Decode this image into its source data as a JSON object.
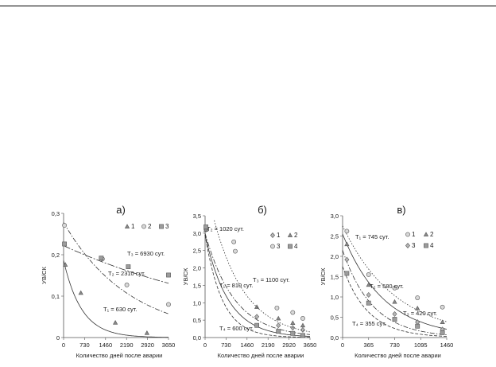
{
  "chart_data": [
    {
      "type": "scatter",
      "title": "а)",
      "xlabel": "Количество дней после аварии",
      "ylabel": "УВ/СК",
      "xlim": [
        0,
        3650
      ],
      "ylim": [
        0,
        0.3
      ],
      "xticks": [
        0,
        730,
        1460,
        2190,
        2920,
        3650
      ],
      "xtick_labels": [
        "0",
        "730",
        "1460",
        "2190",
        "2920",
        "3650"
      ],
      "yticks": [
        0,
        0.1,
        0.2,
        0.3
      ],
      "ytick_labels": [
        "0",
        "0,1",
        "0,2",
        "0,3"
      ],
      "grid": false,
      "legend": {
        "position": "top-right",
        "entries": [
          {
            "label": "1",
            "marker": "triangle"
          },
          {
            "label": "2",
            "marker": "circle"
          },
          {
            "label": "3",
            "marker": "square"
          }
        ]
      },
      "series": [
        {
          "name": "1",
          "marker": "triangle",
          "points": [
            [
              60,
              0.176
            ],
            [
              600,
              0.108
            ],
            [
              1800,
              0.036
            ],
            [
              2900,
              0.011
            ]
          ],
          "curve": {
            "y0": 0.186,
            "period": 630,
            "label": "T₁ = 630 сут.",
            "dash": "solid"
          }
        },
        {
          "name": "2",
          "marker": "circle",
          "points": [
            [
              30,
              0.271
            ],
            [
              1350,
              0.19
            ],
            [
              2200,
              0.127
            ],
            [
              3650,
              0.08
            ]
          ],
          "curve": {
            "y0": 0.278,
            "period": 2310,
            "label": "T₂ = 2310 сут.",
            "dash": "dashdot"
          }
        },
        {
          "name": "3",
          "marker": "square",
          "points": [
            [
              30,
              0.226
            ],
            [
              1310,
              0.192
            ],
            [
              2250,
              0.171
            ],
            [
              3650,
              0.151
            ]
          ],
          "curve": {
            "y0": 0.222,
            "period": 6930,
            "label": "T₃ = 6930 сут.",
            "dash": "longdashdot"
          }
        }
      ]
    },
    {
      "type": "scatter",
      "title": "б)",
      "xlabel": "Количество дней после аварии",
      "ylabel": "УВ/СК",
      "xlim": [
        0,
        3650
      ],
      "ylim": [
        0,
        3.5
      ],
      "xticks": [
        0,
        730,
        1460,
        2190,
        2920,
        3650
      ],
      "xtick_labels": [
        "0",
        "730",
        "1460",
        "2190",
        "2920",
        "3650"
      ],
      "yticks": [
        0,
        0.5,
        1.0,
        1.5,
        2.0,
        2.5,
        3.0,
        3.5
      ],
      "ytick_labels": [
        "0,0",
        "0,5",
        "1,0",
        "1,5",
        "2,0",
        "2,5",
        "3,0",
        "3,5"
      ],
      "grid": false,
      "legend": {
        "position": "top-right",
        "entries": [
          {
            "label": "1",
            "marker": "diamond"
          },
          {
            "label": "2",
            "marker": "triangle"
          },
          {
            "label": "3",
            "marker": "circle"
          },
          {
            "label": "4",
            "marker": "square"
          }
        ]
      },
      "series": [
        {
          "name": "1",
          "marker": "diamond",
          "points": [
            [
              30,
              3.1
            ],
            [
              1800,
              0.6
            ],
            [
              2550,
              0.35
            ],
            [
              3050,
              0.28
            ],
            [
              3400,
              0.22
            ]
          ],
          "curve": {
            "y0": 2.95,
            "period": 810,
            "label": "T₁ = 810 сут.",
            "dash": "solid"
          }
        },
        {
          "name": "2",
          "marker": "triangle",
          "points": [
            [
              30,
              3.1
            ],
            [
              1800,
              0.88
            ],
            [
              2550,
              0.55
            ],
            [
              3050,
              0.42
            ],
            [
              3400,
              0.35
            ]
          ],
          "curve": {
            "y0": 3.0,
            "period": 1020,
            "label": "T₂ = 1020 сут.",
            "dash": "dashdot"
          }
        },
        {
          "name": "3",
          "marker": "circle",
          "points": [
            [
              1000,
              2.75
            ],
            [
              1050,
              2.48
            ],
            [
              2500,
              0.85
            ],
            [
              3050,
              0.72
            ],
            [
              3400,
              0.55
            ]
          ],
          "curve": {
            "y0": 4.5,
            "period": 1100,
            "label": "T₃ = 1100 сут.",
            "dash": "dotted"
          }
        },
        {
          "name": "4",
          "marker": "square",
          "points": [
            [
              30,
              3.18
            ],
            [
              1800,
              0.35
            ],
            [
              2550,
              0.18
            ],
            [
              3050,
              0.12
            ],
            [
              3400,
              0.06
            ]
          ],
          "curve": {
            "y0": 2.95,
            "period": 600,
            "label": "T₄ = 600 сут.",
            "dash": "dashed"
          }
        }
      ]
    },
    {
      "type": "scatter",
      "title": "в)",
      "xlabel": "Количество дней после аварии",
      "ylabel": "УВ/СК",
      "xlim": [
        0,
        1460
      ],
      "ylim": [
        0,
        3.0
      ],
      "xticks": [
        0,
        365,
        730,
        1095,
        1460
      ],
      "xtick_labels": [
        "0",
        "365",
        "730",
        "1095",
        "1460"
      ],
      "yticks": [
        0,
        0.5,
        1.0,
        1.5,
        2.0,
        2.5,
        3.0
      ],
      "ytick_labels": [
        "0,0",
        "0,5",
        "1,0",
        "1,5",
        "2,0",
        "2,5",
        "3,0"
      ],
      "grid": false,
      "legend": {
        "position": "top-right",
        "entries": [
          {
            "label": "1",
            "marker": "circle"
          },
          {
            "label": "2",
            "marker": "triangle"
          },
          {
            "label": "3",
            "marker": "diamond"
          },
          {
            "label": "4",
            "marker": "square"
          }
        ]
      },
      "series": [
        {
          "name": "1",
          "marker": "circle",
          "points": [
            [
              60,
              2.62
            ],
            [
              365,
              1.55
            ],
            [
              730,
              1.22
            ],
            [
              1050,
              0.98
            ],
            [
              1400,
              0.75
            ]
          ],
          "curve": {
            "y0": 2.75,
            "period": 745,
            "label": "T₁ = 745 сут.",
            "dash": "dotted"
          }
        },
        {
          "name": "2",
          "marker": "triangle",
          "points": [
            [
              60,
              2.3
            ],
            [
              365,
              1.3
            ],
            [
              730,
              0.88
            ],
            [
              1050,
              0.72
            ],
            [
              1400,
              0.38
            ]
          ],
          "curve": {
            "y0": 2.55,
            "period": 580,
            "label": "T₂ = 580 сут.",
            "dash": "solid"
          }
        },
        {
          "name": "3",
          "marker": "diamond",
          "points": [
            [
              60,
              1.92
            ],
            [
              365,
              1.05
            ],
            [
              730,
              0.58
            ],
            [
              1050,
              0.38
            ],
            [
              1400,
              0.2
            ]
          ],
          "curve": {
            "y0": 2.15,
            "period": 420,
            "label": "T₃ = 420 сут.",
            "dash": "dashdot"
          }
        },
        {
          "name": "4",
          "marker": "square",
          "points": [
            [
              60,
              1.58
            ],
            [
              365,
              0.85
            ],
            [
              730,
              0.45
            ],
            [
              1050,
              0.28
            ],
            [
              1400,
              0.12
            ]
          ],
          "curve": {
            "y0": 1.75,
            "period": 355,
            "label": "T₄ = 355 сут.",
            "dash": "dashed"
          }
        }
      ]
    }
  ]
}
